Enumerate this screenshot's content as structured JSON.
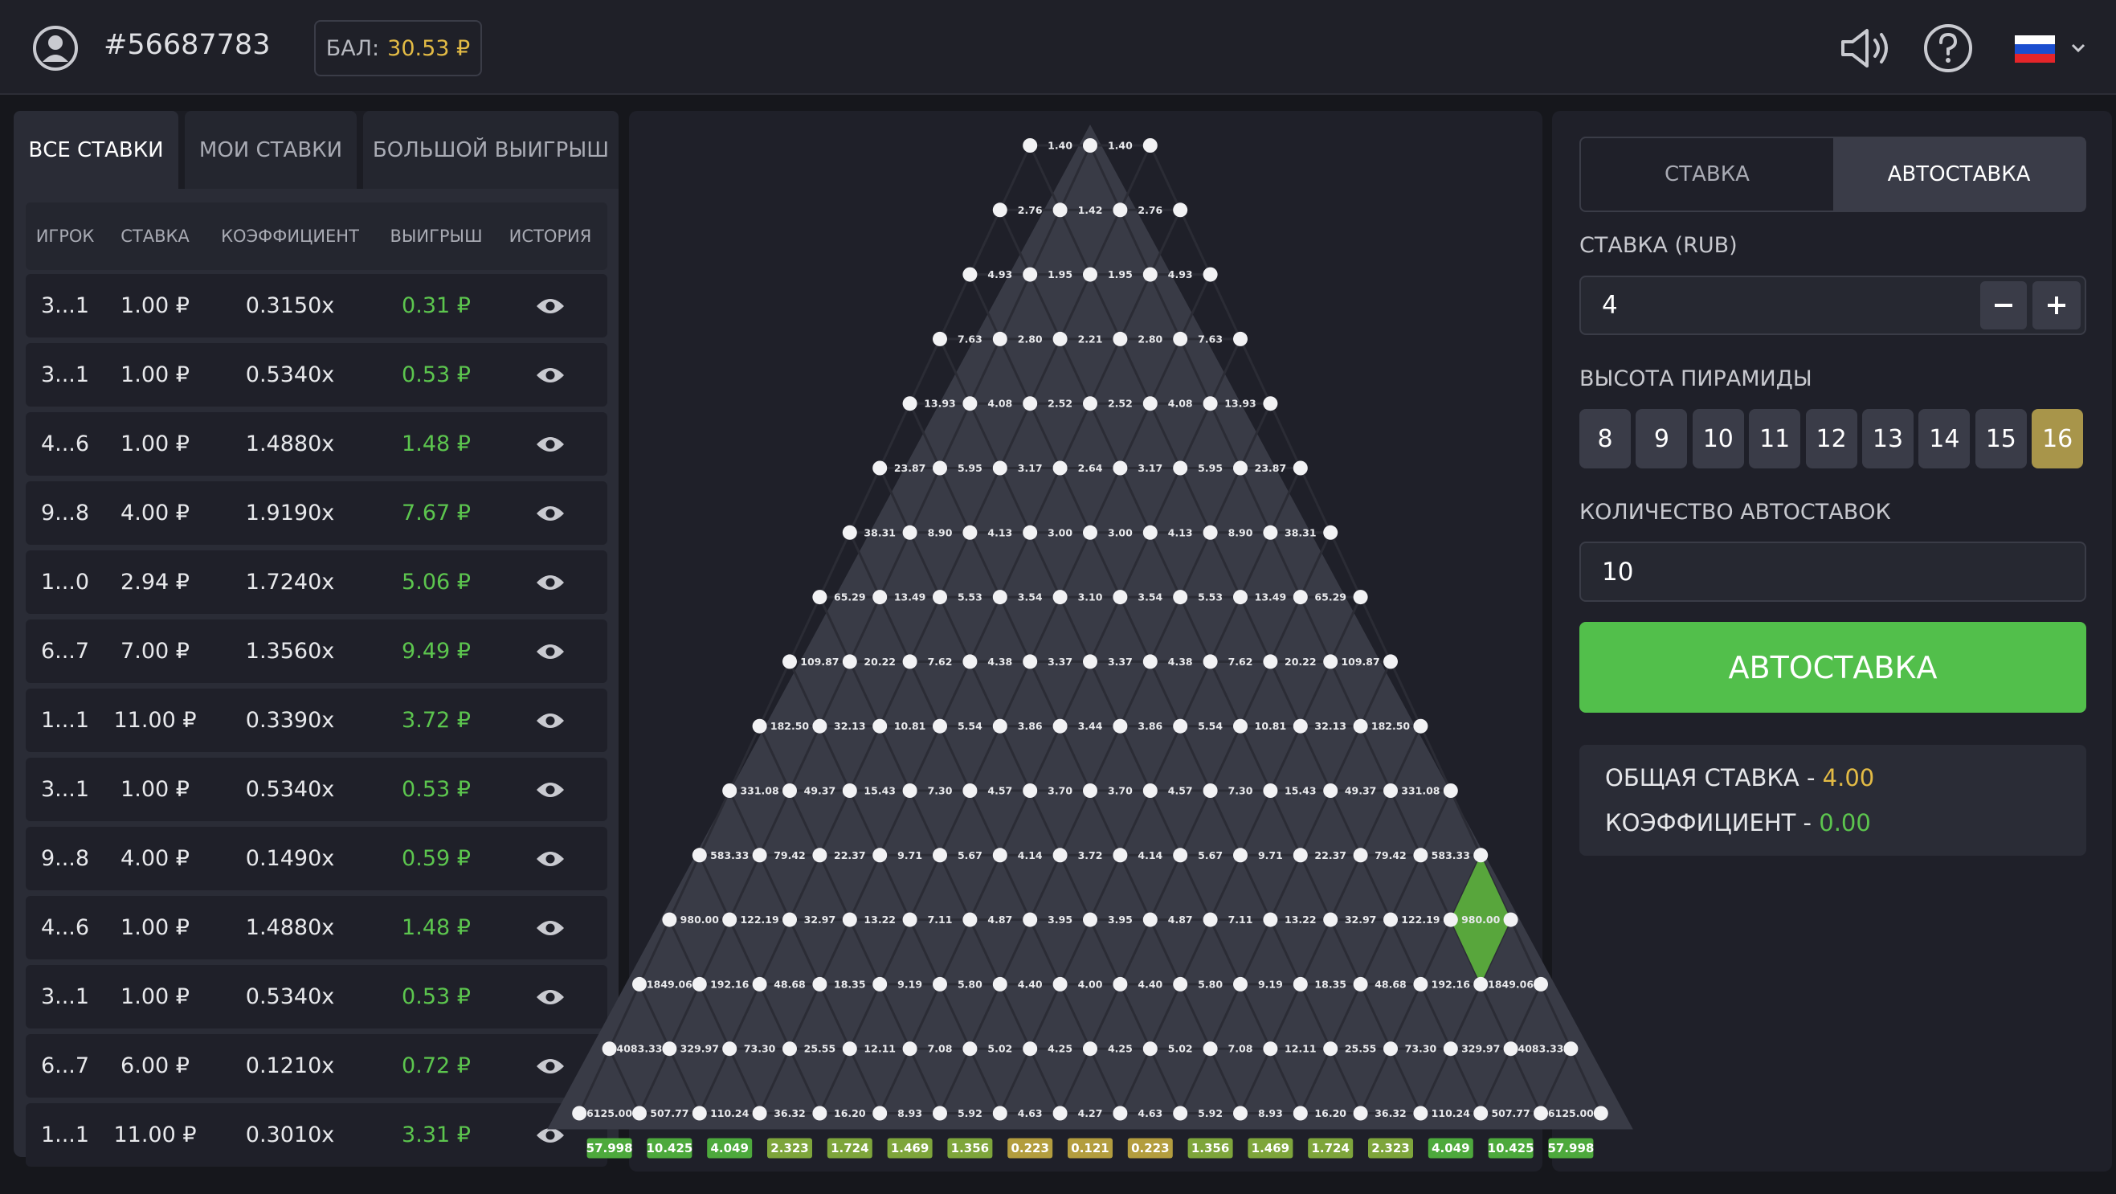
{
  "header": {
    "user_id": "#56687783",
    "balance_label": "БАЛ:",
    "balance": "30.53 ₽"
  },
  "bets_panel": {
    "tabs": [
      "ВСЕ СТАВКИ",
      "МОИ СТАВКИ",
      "БОЛЬШОЙ ВЫИГРЫШ"
    ],
    "columns": [
      "ИГРОК",
      "СТАВКА",
      "КОЭФФИЦИЕНТ",
      "ВЫИГРЫШ",
      "ИСТОРИЯ"
    ],
    "rows": [
      [
        "3...1",
        "1.00 ₽",
        "0.3150x",
        "0.31 ₽"
      ],
      [
        "3...1",
        "1.00 ₽",
        "0.5340x",
        "0.53 ₽"
      ],
      [
        "4...6",
        "1.00 ₽",
        "1.4880x",
        "1.48 ₽"
      ],
      [
        "9...8",
        "4.00 ₽",
        "1.9190x",
        "7.67 ₽"
      ],
      [
        "1...0",
        "2.94 ₽",
        "1.7240x",
        "5.06 ₽"
      ],
      [
        "6...7",
        "7.00 ₽",
        "1.3560x",
        "9.49 ₽"
      ],
      [
        "1...1",
        "11.00 ₽",
        "0.3390x",
        "3.72 ₽"
      ],
      [
        "3...1",
        "1.00 ₽",
        "0.5340x",
        "0.53 ₽"
      ],
      [
        "9...8",
        "4.00 ₽",
        "0.1490x",
        "0.59 ₽"
      ],
      [
        "4...6",
        "1.00 ₽",
        "1.4880x",
        "1.48 ₽"
      ],
      [
        "3...1",
        "1.00 ₽",
        "0.5340x",
        "0.53 ₽"
      ],
      [
        "6...7",
        "6.00 ₽",
        "0.1210x",
        "0.72 ₽"
      ],
      [
        "1...1",
        "11.00 ₽",
        "0.3010x",
        "3.31 ₽"
      ]
    ]
  },
  "pyramid": {
    "rows": [
      [
        "1.40",
        "1.40"
      ],
      [
        "2.76",
        "1.42",
        "2.76"
      ],
      [
        "4.93",
        "1.95",
        "1.95",
        "4.93"
      ],
      [
        "7.63",
        "2.80",
        "2.21",
        "2.80",
        "7.63"
      ],
      [
        "13.93",
        "4.08",
        "2.52",
        "2.52",
        "4.08",
        "13.93"
      ],
      [
        "23.87",
        "5.95",
        "3.17",
        "2.64",
        "3.17",
        "5.95",
        "23.87"
      ],
      [
        "38.31",
        "8.90",
        "4.13",
        "3.00",
        "3.00",
        "4.13",
        "8.90",
        "38.31"
      ],
      [
        "65.29",
        "13.49",
        "5.53",
        "3.54",
        "3.10",
        "3.54",
        "5.53",
        "13.49",
        "65.29"
      ],
      [
        "109.87",
        "20.22",
        "7.62",
        "4.38",
        "3.37",
        "3.37",
        "4.38",
        "7.62",
        "20.22",
        "109.87"
      ],
      [
        "182.50",
        "32.13",
        "10.81",
        "5.54",
        "3.86",
        "3.44",
        "3.86",
        "5.54",
        "10.81",
        "32.13",
        "182.50"
      ],
      [
        "331.08",
        "49.37",
        "15.43",
        "7.30",
        "4.57",
        "3.70",
        "3.70",
        "4.57",
        "7.30",
        "15.43",
        "49.37",
        "331.08"
      ],
      [
        "583.33",
        "79.42",
        "22.37",
        "9.71",
        "5.67",
        "4.14",
        "3.72",
        "4.14",
        "5.67",
        "9.71",
        "22.37",
        "79.42",
        "583.33"
      ],
      [
        "980.00",
        "122.19",
        "32.97",
        "13.22",
        "7.11",
        "4.87",
        "3.95",
        "3.95",
        "4.87",
        "7.11",
        "13.22",
        "32.97",
        "122.19",
        "980.00"
      ],
      [
        "1849.06",
        "192.16",
        "48.68",
        "18.35",
        "9.19",
        "5.80",
        "4.40",
        "4.00",
        "4.40",
        "5.80",
        "9.19",
        "18.35",
        "48.68",
        "192.16",
        "1849.06"
      ],
      [
        "4083.33",
        "329.97",
        "73.30",
        "25.55",
        "12.11",
        "7.08",
        "5.02",
        "4.25",
        "4.25",
        "5.02",
        "7.08",
        "12.11",
        "25.55",
        "73.30",
        "329.97",
        "4083.33"
      ],
      [
        "6125.00",
        "507.77",
        "110.24",
        "36.32",
        "16.20",
        "8.93",
        "5.92",
        "4.63",
        "4.27",
        "4.63",
        "5.92",
        "8.93",
        "16.20",
        "36.32",
        "110.24",
        "507.77",
        "6125.00"
      ]
    ],
    "slots": [
      "57.998",
      "10.425",
      "4.049",
      "2.323",
      "1.724",
      "1.469",
      "1.356",
      "0.223",
      "0.121",
      "0.223",
      "1.356",
      "1.469",
      "1.724",
      "2.323",
      "4.049",
      "10.425",
      "57.998"
    ]
  },
  "controls": {
    "tabs": [
      "СТАВКА",
      "АВТОСТАВКА"
    ],
    "stake_label": "СТАВКА (RUB)",
    "stake_value": "4",
    "height_label": "ВЫСОТА ПИРАМИДЫ",
    "heights": [
      "8",
      "9",
      "10",
      "11",
      "12",
      "13",
      "14",
      "15",
      "16"
    ],
    "autobets_label": "КОЛИЧЕСТВО АВТОСТАВОК",
    "autobets_value": "10",
    "button": "АВТОСТАВКА",
    "total_label": "ОБЩАЯ СТАВКА -",
    "total_value": "4.00",
    "coef_label": "КОЭФФИЦИЕНТ -",
    "coef_value": "0.00"
  }
}
